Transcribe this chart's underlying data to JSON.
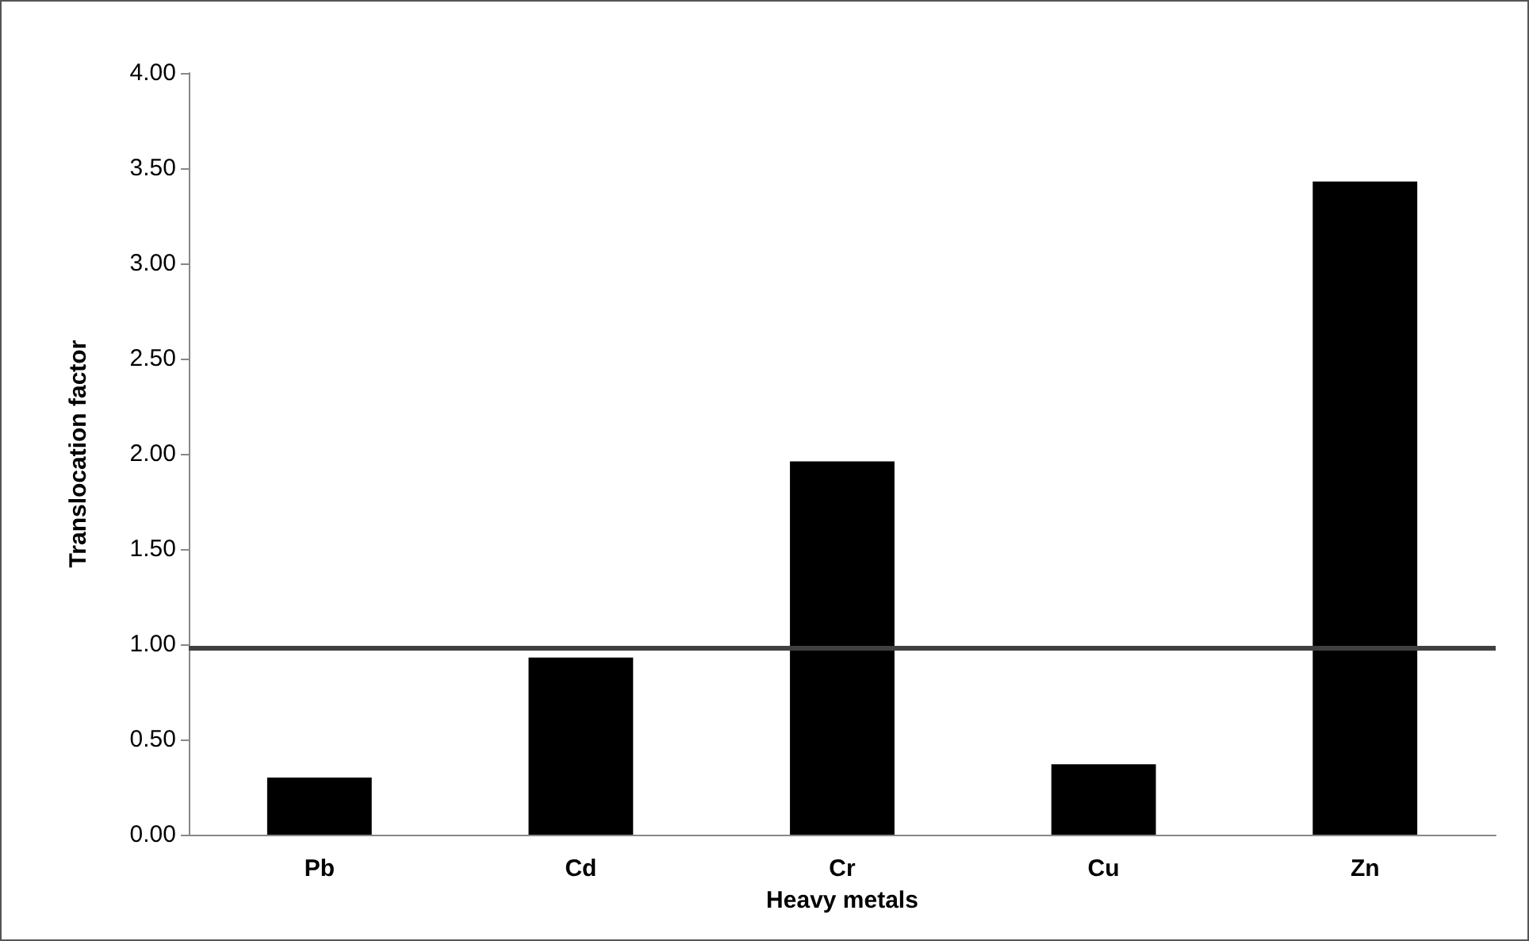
{
  "chart_data": {
    "type": "bar",
    "xlabel": "Heavy metals",
    "ylabel": "Translocation factor",
    "categories": [
      "Pb",
      "Cd",
      "Cr",
      "Cu",
      "Zn"
    ],
    "values": [
      0.3,
      0.93,
      1.96,
      0.37,
      3.43
    ],
    "color": "#000000",
    "ylim": [
      0,
      4
    ],
    "yticks": [
      {
        "value": 0,
        "label": "0.00"
      },
      {
        "value": 0.5,
        "label": "0.50"
      },
      {
        "value": 1,
        "label": "1.00"
      },
      {
        "value": 1.5,
        "label": "1.50"
      },
      {
        "value": 2,
        "label": "2.00"
      },
      {
        "value": 2.5,
        "label": "2.50"
      },
      {
        "value": 3,
        "label": "3.00"
      },
      {
        "value": 3.5,
        "label": "3.50"
      },
      {
        "value": 4,
        "label": "4.00"
      }
    ],
    "ref_lines": [
      {
        "axis": "y",
        "value": 0.98,
        "color": "#404040"
      }
    ],
    "grid": false
  }
}
